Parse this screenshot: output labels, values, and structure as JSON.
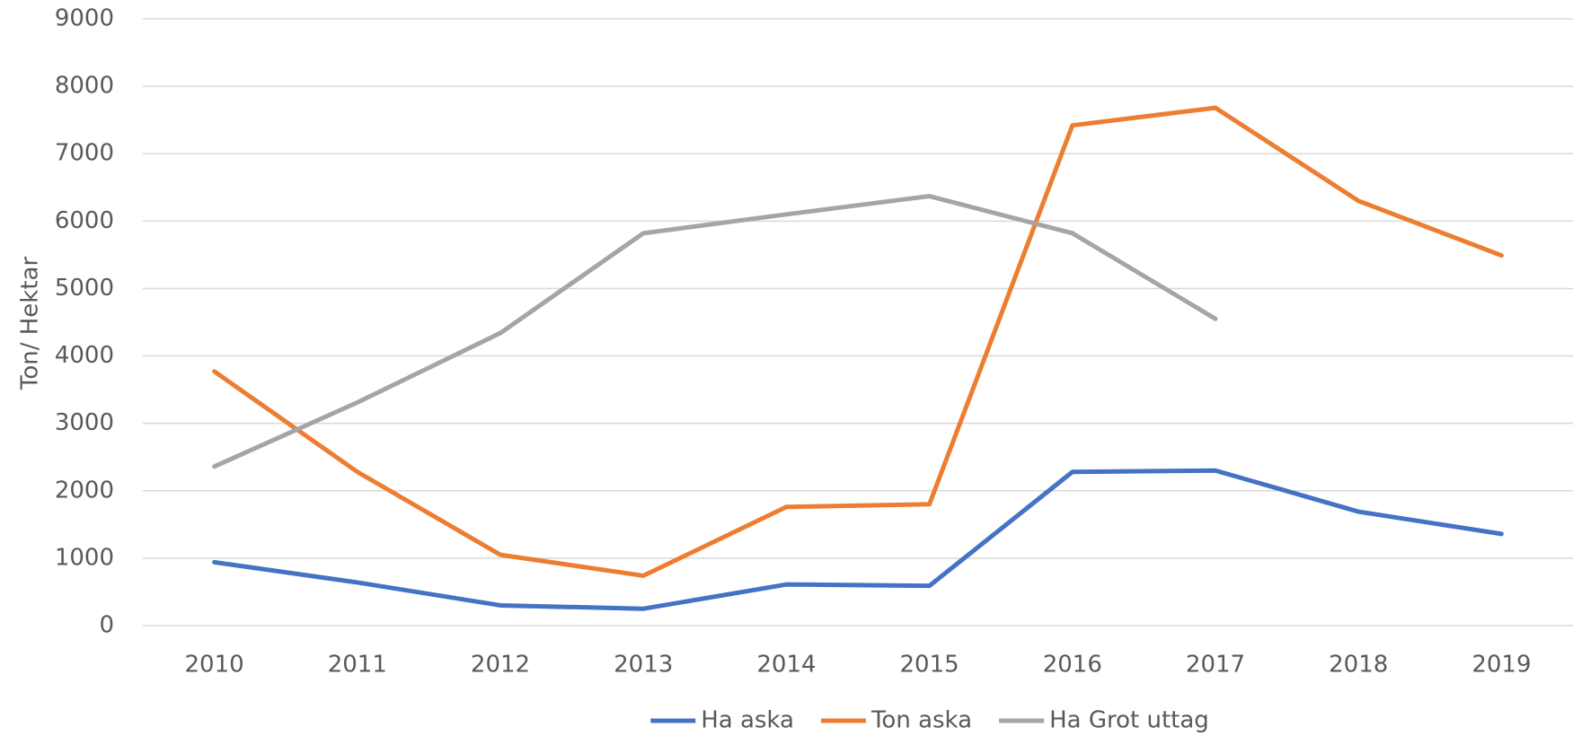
{
  "chart_data": {
    "type": "line",
    "y_label": "Ton/ Hektar",
    "categories": [
      "2010",
      "2011",
      "2012",
      "2013",
      "2014",
      "2015",
      "2016",
      "2017",
      "2018",
      "2019"
    ],
    "series": [
      {
        "name": "Ha aska",
        "color": "#4472c4",
        "values": [
          940,
          640,
          300,
          250,
          610,
          590,
          2280,
          2300,
          1690,
          1360
        ]
      },
      {
        "name": "Ton aska",
        "color": "#ed7d31",
        "values": [
          3770,
          2280,
          1050,
          740,
          1760,
          1800,
          7420,
          7680,
          6300,
          5490
        ]
      },
      {
        "name": "Ha Grot uttag",
        "color": "#a5a5a5",
        "values": [
          2360,
          3310,
          4340,
          5820,
          6100,
          6370,
          5820,
          4550,
          null,
          null
        ]
      }
    ],
    "ylim": [
      0,
      9000
    ],
    "yticks": [
      0,
      1000,
      2000,
      3000,
      4000,
      5000,
      6000,
      7000,
      8000,
      9000
    ],
    "grid": true,
    "legend": "bottom"
  }
}
